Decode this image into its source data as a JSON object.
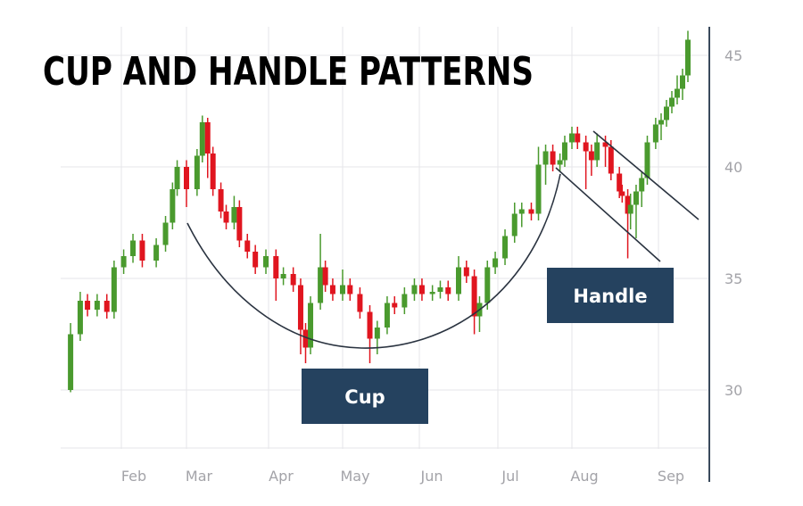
{
  "chart_data": {
    "type": "candlestick",
    "title": "CUP AND HANDLE PATTERNS",
    "xlabel": "",
    "ylabel": "",
    "x_tick_labels": [
      "Feb",
      "Mar",
      "Apr",
      "May",
      "Jun",
      "Jul",
      "Aug",
      "Sep"
    ],
    "y_ticks": [
      30,
      35,
      40,
      45
    ],
    "ylim": [
      27.4,
      46.5
    ],
    "y_axis_side": "right",
    "grid": true,
    "colors": {
      "up": "#4a9a2e",
      "down": "#e0151f",
      "annotation_box": "#25425f",
      "trend_line": "#2a3340"
    },
    "annotations": [
      {
        "label": "Cup",
        "type": "curve"
      },
      {
        "label": "Handle",
        "type": "channel"
      }
    ],
    "candles_fields": [
      "date",
      "open",
      "high",
      "low",
      "close"
    ],
    "candles": [
      [
        "01-11",
        30.0,
        33.0,
        29.9,
        32.5
      ],
      [
        "01-15",
        32.5,
        34.4,
        32.2,
        34.0
      ],
      [
        "01-18",
        34.0,
        34.3,
        33.3,
        33.6
      ],
      [
        "01-22",
        33.6,
        34.3,
        33.3,
        34.0
      ],
      [
        "01-26",
        34.0,
        34.3,
        33.2,
        33.5
      ],
      [
        "01-29",
        33.5,
        35.8,
        33.2,
        35.5
      ],
      [
        "02-02",
        35.5,
        36.3,
        35.2,
        36.0
      ],
      [
        "02-06",
        36.0,
        37.0,
        35.7,
        36.7
      ],
      [
        "02-10",
        36.7,
        37.0,
        35.5,
        35.8
      ],
      [
        "02-16",
        35.8,
        36.8,
        35.5,
        36.5
      ],
      [
        "02-20",
        36.5,
        37.8,
        36.2,
        37.5
      ],
      [
        "02-23",
        37.5,
        39.3,
        37.2,
        39.0
      ],
      [
        "02-25",
        39.0,
        40.3,
        38.7,
        40.0
      ],
      [
        "03-01",
        40.0,
        40.3,
        38.2,
        39.0
      ],
      [
        "03-05",
        39.0,
        40.8,
        38.7,
        40.5
      ],
      [
        "03-07",
        40.5,
        42.3,
        40.2,
        42.0
      ],
      [
        "03-09",
        42.0,
        42.2,
        39.5,
        40.6
      ],
      [
        "03-11",
        40.6,
        40.9,
        38.7,
        39.0
      ],
      [
        "03-14",
        39.0,
        39.3,
        37.7,
        38.0
      ],
      [
        "03-16",
        38.0,
        38.3,
        37.2,
        37.5
      ],
      [
        "03-19",
        37.5,
        38.7,
        37.2,
        38.2
      ],
      [
        "03-21",
        38.2,
        38.5,
        36.4,
        36.7
      ],
      [
        "03-24",
        36.7,
        37.0,
        35.9,
        36.2
      ],
      [
        "03-27",
        36.2,
        36.5,
        35.2,
        35.5
      ],
      [
        "03-31",
        35.5,
        36.3,
        35.2,
        36.0
      ],
      [
        "04-04",
        36.0,
        36.3,
        34.0,
        35.0
      ],
      [
        "04-07",
        35.0,
        35.5,
        34.7,
        35.2
      ],
      [
        "04-11",
        35.2,
        35.5,
        34.4,
        34.7
      ],
      [
        "04-14",
        34.7,
        35.0,
        31.6,
        32.7
      ],
      [
        "04-16",
        32.7,
        33.0,
        31.2,
        31.9
      ],
      [
        "04-18",
        31.9,
        34.2,
        31.6,
        33.9
      ],
      [
        "04-22",
        33.9,
        37.0,
        33.6,
        35.5
      ],
      [
        "04-24",
        35.5,
        35.8,
        34.4,
        34.7
      ],
      [
        "04-27",
        34.7,
        35.0,
        34.0,
        34.3
      ],
      [
        "05-01",
        34.3,
        35.4,
        34.0,
        34.7
      ],
      [
        "05-04",
        34.7,
        35.0,
        34.0,
        34.3
      ],
      [
        "05-08",
        34.3,
        34.6,
        33.2,
        33.5
      ],
      [
        "05-12",
        33.5,
        33.8,
        31.2,
        32.3
      ],
      [
        "05-15",
        32.3,
        33.1,
        31.6,
        32.8
      ],
      [
        "05-19",
        32.8,
        34.2,
        32.5,
        33.9
      ],
      [
        "05-22",
        33.9,
        34.2,
        33.4,
        33.7
      ],
      [
        "05-26",
        33.7,
        34.6,
        33.4,
        34.3
      ],
      [
        "05-30",
        34.3,
        35.0,
        34.0,
        34.7
      ],
      [
        "06-02",
        34.7,
        35.0,
        34.0,
        34.3
      ],
      [
        "06-06",
        34.3,
        34.7,
        34.0,
        34.4
      ],
      [
        "06-09",
        34.4,
        34.9,
        34.1,
        34.6
      ],
      [
        "06-12",
        34.6,
        34.9,
        34.0,
        34.3
      ],
      [
        "06-16",
        34.3,
        36.0,
        34.0,
        35.5
      ],
      [
        "06-19",
        35.5,
        35.8,
        34.8,
        35.1
      ],
      [
        "06-22",
        35.1,
        35.4,
        32.5,
        33.3
      ],
      [
        "06-24",
        33.3,
        34.2,
        32.6,
        33.9
      ],
      [
        "06-27",
        33.9,
        35.8,
        33.6,
        35.5
      ],
      [
        "06-30",
        35.5,
        36.2,
        35.2,
        35.9
      ],
      [
        "07-04",
        35.9,
        37.2,
        35.6,
        36.9
      ],
      [
        "07-08",
        36.9,
        38.4,
        36.6,
        37.9
      ],
      [
        "07-11",
        37.9,
        38.4,
        37.3,
        38.1
      ],
      [
        "07-15",
        38.1,
        38.4,
        37.6,
        37.9
      ],
      [
        "07-18",
        37.9,
        40.9,
        37.6,
        40.1
      ],
      [
        "07-21",
        40.1,
        41.0,
        39.2,
        40.7
      ],
      [
        "07-24",
        40.7,
        41.0,
        39.8,
        40.1
      ],
      [
        "07-27",
        40.1,
        40.6,
        39.8,
        40.3
      ],
      [
        "07-29",
        40.3,
        41.4,
        40.0,
        41.1
      ],
      [
        "08-01",
        41.1,
        41.8,
        40.8,
        41.5
      ],
      [
        "08-03",
        41.5,
        41.8,
        40.8,
        41.1
      ],
      [
        "08-06",
        41.1,
        41.4,
        39.0,
        40.7
      ],
      [
        "08-08",
        40.7,
        41.0,
        39.6,
        40.3
      ],
      [
        "08-10",
        40.3,
        41.5,
        40.0,
        41.1
      ],
      [
        "08-13",
        41.1,
        41.4,
        40.0,
        40.9
      ],
      [
        "08-15",
        40.9,
        41.2,
        39.4,
        39.7
      ],
      [
        "08-18",
        39.7,
        40.0,
        38.6,
        38.9
      ],
      [
        "08-19",
        38.9,
        39.2,
        38.4,
        38.7
      ],
      [
        "08-21",
        38.7,
        39.0,
        35.9,
        37.9
      ],
      [
        "08-22",
        37.9,
        38.8,
        37.2,
        38.3
      ],
      [
        "08-24",
        38.3,
        39.2,
        36.8,
        38.9
      ],
      [
        "08-26",
        38.9,
        39.8,
        38.2,
        39.5
      ],
      [
        "08-28",
        39.5,
        41.4,
        39.2,
        41.1
      ],
      [
        "08-31",
        41.1,
        42.2,
        40.8,
        41.9
      ],
      [
        "09-02",
        41.9,
        42.4,
        41.2,
        42.1
      ],
      [
        "09-04",
        42.1,
        43.0,
        41.8,
        42.7
      ],
      [
        "09-06",
        42.7,
        43.4,
        42.4,
        43.1
      ],
      [
        "09-08",
        43.1,
        44.1,
        42.8,
        43.5
      ],
      [
        "09-10",
        43.5,
        44.4,
        43.0,
        44.1
      ],
      [
        "09-12",
        44.1,
        46.1,
        43.8,
        45.7
      ]
    ]
  }
}
